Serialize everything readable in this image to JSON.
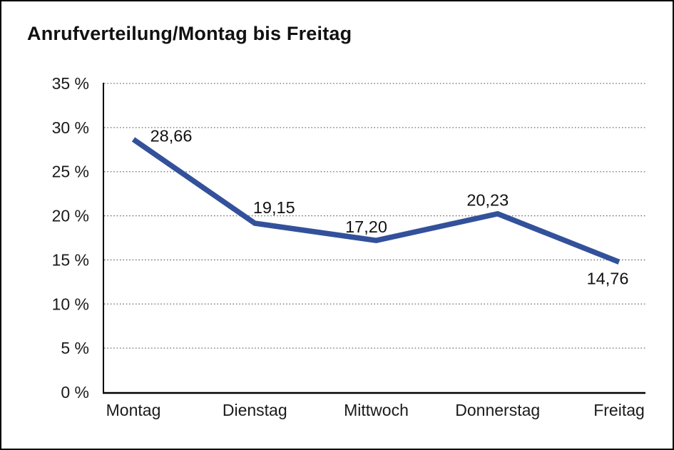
{
  "page": {
    "title": "Anrufverteilung/Montag bis Freitag"
  },
  "chart_data": {
    "type": "line",
    "title": "Anrufverteilung/Montag bis Freitag",
    "categories": [
      "Montag",
      "Dienstag",
      "Mittwoch",
      "Donnerstag",
      "Freitag"
    ],
    "series": [
      {
        "name": "Anrufverteilung",
        "values": [
          28.66,
          19.15,
          17.2,
          20.23,
          14.76
        ],
        "point_labels": [
          "28,66",
          "19,15",
          "17,20",
          "20,23",
          "14,76"
        ]
      }
    ],
    "xlabel": "",
    "ylabel": "",
    "ylim": [
      0,
      35
    ],
    "y_tick_step": 5,
    "y_tick_labels": [
      "0 %",
      "5 %",
      "10 %",
      "15 %",
      "20 %",
      "25 %",
      "30 %",
      "35 %"
    ],
    "grid": "horizontal-dotted",
    "legend": "none",
    "colors": {
      "line": "#33519B",
      "text": "#1A1A1A",
      "grid": "#6E6E6E",
      "axis": "#000000"
    }
  }
}
